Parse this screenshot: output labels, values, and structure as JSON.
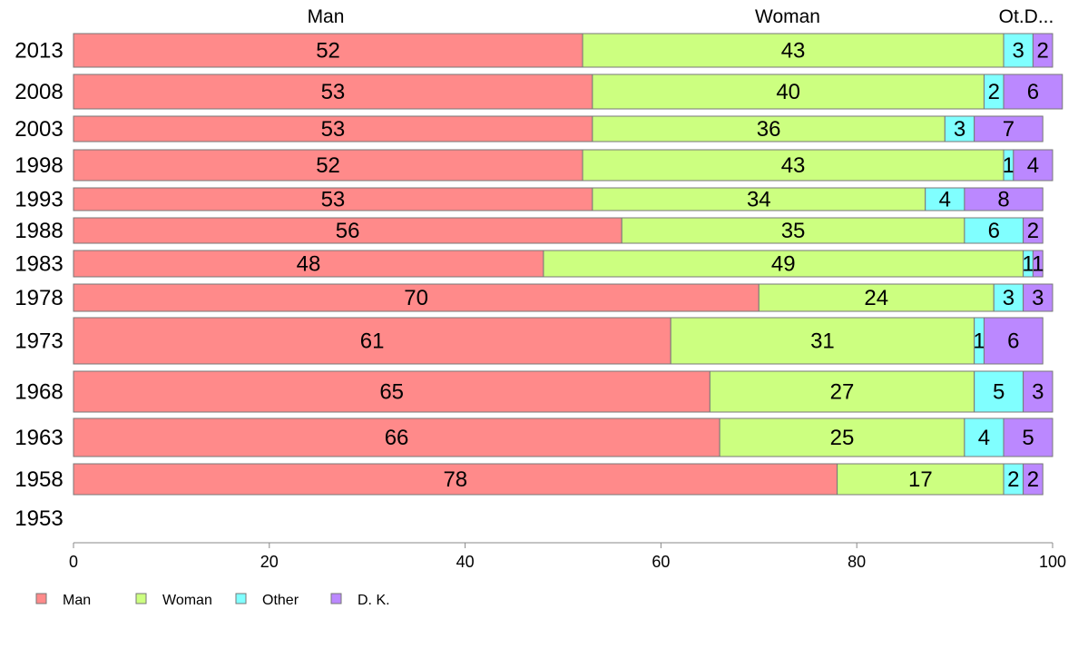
{
  "chart_data": {
    "type": "bar",
    "orientation": "horizontal",
    "stacked": true,
    "categories": [
      "2013",
      "2008",
      "2003",
      "1998",
      "1993",
      "1988",
      "1983",
      "1978",
      "1973",
      "1968",
      "1963",
      "1958",
      "1953"
    ],
    "series": [
      {
        "name": "Man",
        "color": "#ff8a8a",
        "values": [
          52,
          53,
          53,
          52,
          53,
          56,
          48,
          70,
          61,
          65,
          66,
          78,
          null
        ]
      },
      {
        "name": "Woman",
        "color": "#ccff80",
        "values": [
          43,
          40,
          36,
          43,
          34,
          35,
          49,
          24,
          31,
          27,
          25,
          17,
          null
        ]
      },
      {
        "name": "Other",
        "color": "#80ffff",
        "values": [
          3,
          2,
          3,
          1,
          4,
          6,
          1,
          3,
          1,
          5,
          4,
          2,
          null
        ]
      },
      {
        "name": "D. K.",
        "color": "#bb88ff",
        "values": [
          2,
          6,
          7,
          4,
          8,
          2,
          1,
          3,
          6,
          3,
          5,
          2,
          null
        ]
      }
    ],
    "top_labels": [
      "Man",
      "Woman",
      "Ot.D..."
    ],
    "x_ticks": [
      "0",
      "20",
      "40",
      "60",
      "80",
      "100"
    ],
    "xlim": [
      0,
      100
    ],
    "grid": false,
    "legend_position": "bottom-left"
  }
}
